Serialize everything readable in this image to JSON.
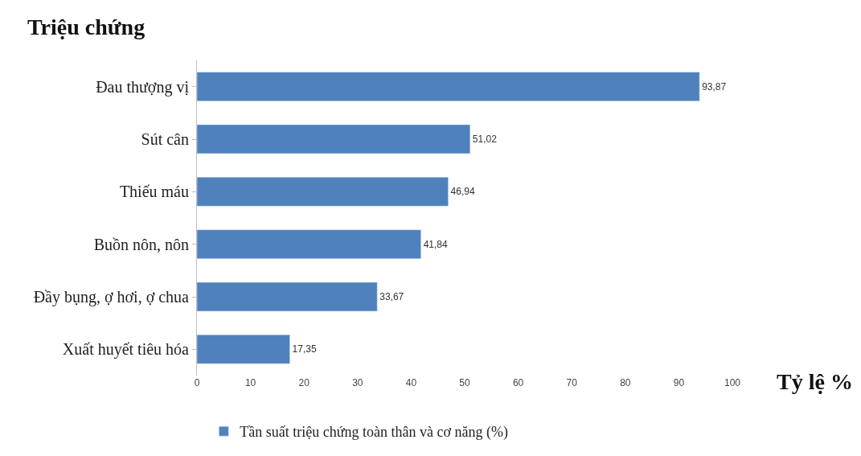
{
  "chart_data": {
    "type": "bar",
    "orientation": "horizontal",
    "ylabel": "Triệu chứng",
    "xlabel": "Tỷ lệ %",
    "categories": [
      "Đau thượng vị",
      "Sút cân",
      "Thiếu máu",
      "Buồn nôn, nôn",
      "Đầy bụng, ợ hơi, ợ chua",
      "Xuất huyết tiêu hóa"
    ],
    "series": [
      {
        "name": "Tần suất triệu chứng toàn thân và cơ năng (%)",
        "color": "#4f81bd",
        "values": [
          93.87,
          51.02,
          46.94,
          41.84,
          33.67,
          17.35
        ],
        "value_labels": [
          "93,87",
          "51,02",
          "46,94",
          "41,84",
          "33,67",
          "17,35"
        ]
      }
    ],
    "xlim": [
      0,
      100
    ],
    "xticks": [
      0,
      10,
      20,
      30,
      40,
      50,
      60,
      70,
      80,
      90,
      100
    ],
    "legend": "bottom left"
  }
}
